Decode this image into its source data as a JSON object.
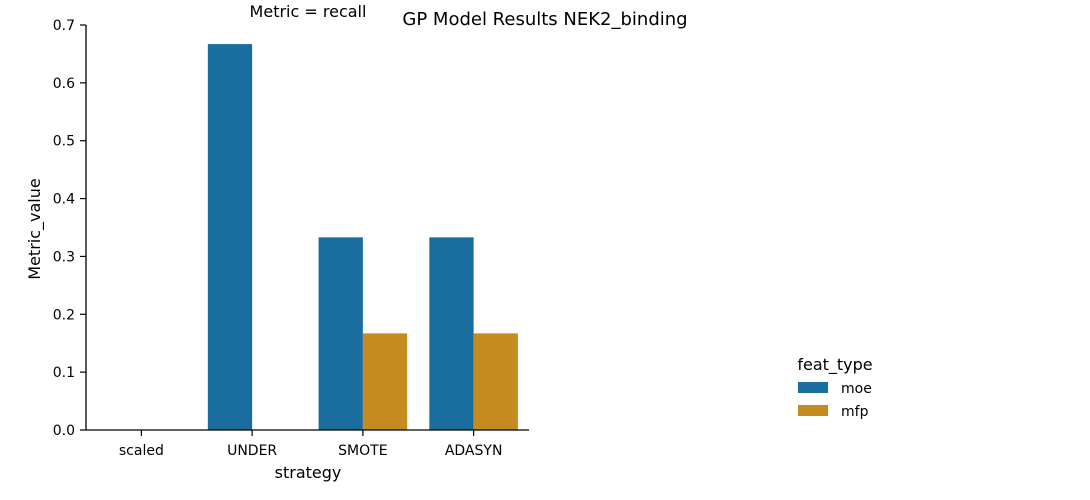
{
  "chart_data": {
    "type": "bar",
    "title": "GP Model Results NEK2_binding",
    "subtitle": "Metric = recall",
    "xlabel": "strategy",
    "ylabel": "Metric_value",
    "categories": [
      "scaled",
      "UNDER",
      "SMOTE",
      "ADASYN"
    ],
    "ylim": [
      0,
      0.7
    ],
    "yticks": [
      "0.0",
      "0.1",
      "0.2",
      "0.3",
      "0.4",
      "0.5",
      "0.6",
      "0.7"
    ],
    "grid": false,
    "legend": {
      "title": "feat_type",
      "position": "right"
    },
    "series": [
      {
        "name": "moe",
        "color": "#1a6e9f",
        "values": [
          0,
          0.667,
          0.333,
          0.333
        ]
      },
      {
        "name": "mfp",
        "color": "#c58a20",
        "values": [
          0,
          0,
          0.167,
          0.167
        ]
      }
    ]
  }
}
